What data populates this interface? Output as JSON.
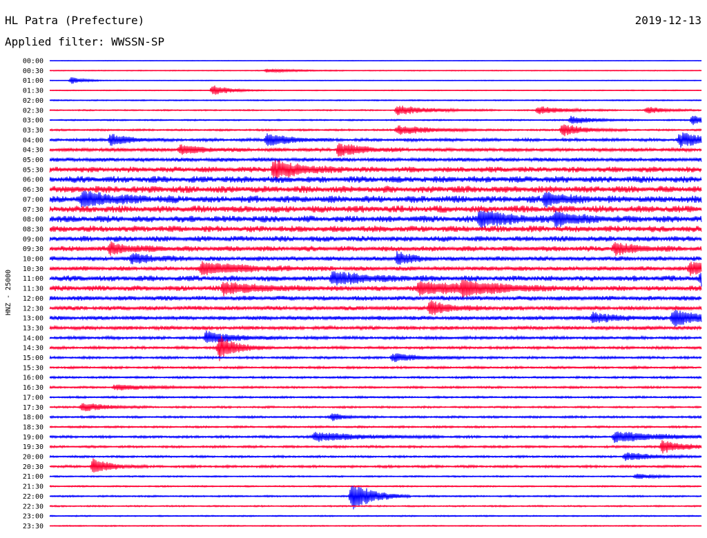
{
  "header": {
    "station": "HL Patra (Prefecture)",
    "date": "2019-12-13",
    "filter": "Applied filter: WWSSN-SP"
  },
  "chart_data": {
    "type": "line",
    "ylabel": "HNZ - 25000",
    "colors": {
      "even": "#0000ff",
      "odd": "#ff0033"
    },
    "rows": [
      "00:00",
      "00:30",
      "01:00",
      "01:30",
      "02:00",
      "02:30",
      "03:00",
      "03:30",
      "04:00",
      "04:30",
      "05:00",
      "05:30",
      "06:00",
      "06:30",
      "07:00",
      "07:30",
      "08:00",
      "08:30",
      "09:00",
      "09:30",
      "10:00",
      "10:30",
      "11:00",
      "11:30",
      "12:00",
      "12:30",
      "13:00",
      "13:30",
      "14:00",
      "14:30",
      "15:00",
      "15:30",
      "16:00",
      "16:30",
      "17:00",
      "17:30",
      "18:00",
      "18:30",
      "19:00",
      "19:30",
      "20:00",
      "20:30",
      "21:00",
      "21:30",
      "22:00",
      "22:30",
      "23:00",
      "23:30"
    ],
    "noise_level": [
      0.4,
      0.6,
      0.5,
      0.6,
      0.8,
      0.9,
      1.0,
      1.2,
      2.0,
      2.4,
      2.6,
      3.6,
      4.2,
      4.4,
      4.5,
      4.4,
      4.3,
      4.0,
      3.6,
      3.4,
      3.0,
      2.8,
      3.6,
      3.4,
      3.0,
      2.8,
      2.6,
      2.4,
      2.0,
      1.8,
      1.6,
      1.5,
      1.4,
      1.4,
      1.3,
      1.3,
      1.4,
      1.3,
      1.6,
      1.5,
      1.4,
      1.6,
      1.0,
      1.0,
      1.1,
      1.0,
      0.9,
      0.8
    ],
    "events": [
      {
        "row": 1,
        "minute": 10.0,
        "amp": 3,
        "dur": 1.2
      },
      {
        "row": 2,
        "minute": 1.0,
        "amp": 5,
        "dur": 0.6
      },
      {
        "row": 3,
        "minute": 7.5,
        "amp": 8,
        "dur": 0.8
      },
      {
        "row": 5,
        "minute": 16.0,
        "amp": 7,
        "dur": 1.5
      },
      {
        "row": 5,
        "minute": 22.5,
        "amp": 6,
        "dur": 1.2
      },
      {
        "row": 5,
        "minute": 27.5,
        "amp": 5,
        "dur": 0.8
      },
      {
        "row": 6,
        "minute": 24.0,
        "amp": 6,
        "dur": 1.0
      },
      {
        "row": 6,
        "minute": 29.6,
        "amp": 8,
        "dur": 0.5
      },
      {
        "row": 7,
        "minute": 16.0,
        "amp": 7,
        "dur": 1.5
      },
      {
        "row": 7,
        "minute": 23.6,
        "amp": 9,
        "dur": 1.0
      },
      {
        "row": 8,
        "minute": 2.8,
        "amp": 9,
        "dur": 0.8
      },
      {
        "row": 8,
        "minute": 10.0,
        "amp": 10,
        "dur": 1.0
      },
      {
        "row": 8,
        "minute": 29.0,
        "amp": 11,
        "dur": 1.2
      },
      {
        "row": 9,
        "minute": 6.0,
        "amp": 7,
        "dur": 1.0
      },
      {
        "row": 9,
        "minute": 13.3,
        "amp": 10,
        "dur": 1.0
      },
      {
        "row": 11,
        "minute": 10.3,
        "amp": 14,
        "dur": 1.2
      },
      {
        "row": 14,
        "minute": 1.5,
        "amp": 10,
        "dur": 1.5
      },
      {
        "row": 14,
        "minute": 22.8,
        "amp": 9,
        "dur": 1.0
      },
      {
        "row": 16,
        "minute": 19.8,
        "amp": 13,
        "dur": 1.2
      },
      {
        "row": 16,
        "minute": 23.3,
        "amp": 10,
        "dur": 1.0
      },
      {
        "row": 19,
        "minute": 2.8,
        "amp": 8,
        "dur": 1.0
      },
      {
        "row": 19,
        "minute": 26.0,
        "amp": 8,
        "dur": 1.0
      },
      {
        "row": 20,
        "minute": 3.8,
        "amp": 7,
        "dur": 1.0
      },
      {
        "row": 20,
        "minute": 16.0,
        "amp": 10,
        "dur": 0.6
      },
      {
        "row": 21,
        "minute": 7.0,
        "amp": 9,
        "dur": 2.0
      },
      {
        "row": 21,
        "minute": 29.5,
        "amp": 10,
        "dur": 1.2
      },
      {
        "row": 22,
        "minute": 13.0,
        "amp": 9,
        "dur": 1.5
      },
      {
        "row": 22,
        "minute": 30.0,
        "amp": 10,
        "dur": 1.0
      },
      {
        "row": 23,
        "minute": 8.0,
        "amp": 9,
        "dur": 1.5
      },
      {
        "row": 23,
        "minute": 17.0,
        "amp": 9,
        "dur": 2.5
      },
      {
        "row": 23,
        "minute": 19.0,
        "amp": 8,
        "dur": 1.5
      },
      {
        "row": 25,
        "minute": 17.5,
        "amp": 10,
        "dur": 1.0
      },
      {
        "row": 26,
        "minute": 25.0,
        "amp": 8,
        "dur": 1.0
      },
      {
        "row": 26,
        "minute": 28.7,
        "amp": 13,
        "dur": 1.0
      },
      {
        "row": 28,
        "minute": 7.2,
        "amp": 9,
        "dur": 1.2
      },
      {
        "row": 29,
        "minute": 7.8,
        "amp": 18,
        "dur": 0.8
      },
      {
        "row": 30,
        "minute": 15.8,
        "amp": 6,
        "dur": 1.2
      },
      {
        "row": 33,
        "minute": 3.0,
        "amp": 4,
        "dur": 1.5
      },
      {
        "row": 35,
        "minute": 1.5,
        "amp": 7,
        "dur": 1.0
      },
      {
        "row": 36,
        "minute": 13.0,
        "amp": 5,
        "dur": 0.6
      },
      {
        "row": 38,
        "minute": 12.2,
        "amp": 7,
        "dur": 2.0
      },
      {
        "row": 38,
        "minute": 26.0,
        "amp": 8,
        "dur": 2.0
      },
      {
        "row": 39,
        "minute": 28.2,
        "amp": 9,
        "dur": 1.0
      },
      {
        "row": 40,
        "minute": 26.5,
        "amp": 6,
        "dur": 1.2
      },
      {
        "row": 41,
        "minute": 2.0,
        "amp": 11,
        "dur": 0.8
      },
      {
        "row": 42,
        "minute": 27.0,
        "amp": 4,
        "dur": 0.8
      },
      {
        "row": 44,
        "minute": 13.9,
        "amp": 23,
        "dur": 0.9
      }
    ]
  }
}
